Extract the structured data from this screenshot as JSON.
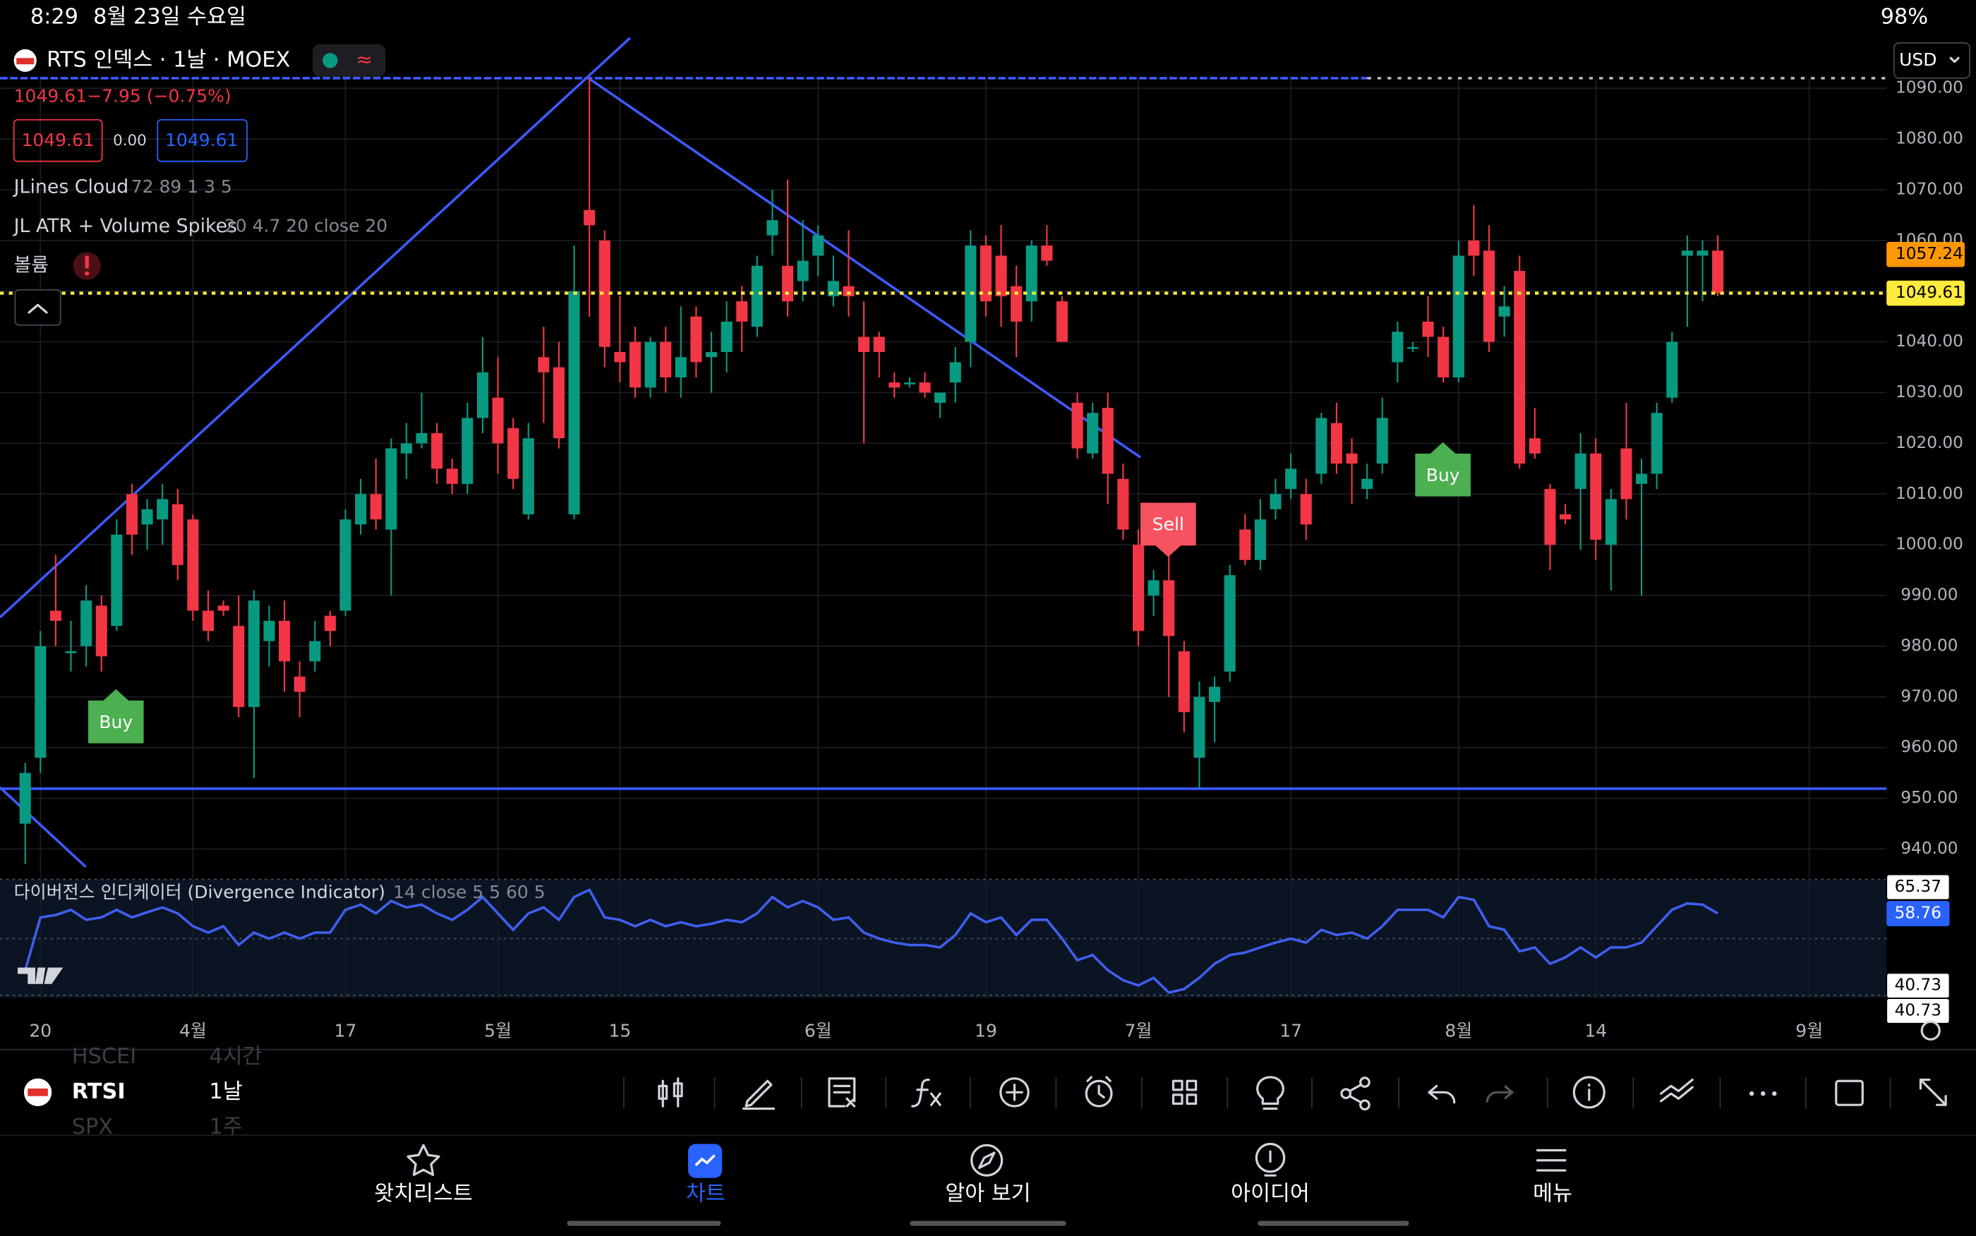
{
  "status_bar": {
    "time": "8:29",
    "date": "8월 23일 수요일",
    "battery": "98%"
  },
  "header": {
    "symbol": "RTS 인덱스 · 1날 · MOEX",
    "currency": "USD"
  },
  "quote": {
    "price": "1049.61",
    "change": "−7.95 (−0.75%)",
    "bid": "1049.61",
    "spread": "0.00",
    "ask": "1049.61"
  },
  "indicators": [
    {
      "name": "JLines Cloud",
      "params": "72 89 1 3 5"
    },
    {
      "name": "JL ATR + Volume Spikes",
      "params": "20 4.7 20 close 20"
    },
    {
      "name": "볼륨"
    }
  ],
  "signals": [
    "Buy",
    "Sell",
    "Buy"
  ],
  "chart_data": {
    "type": "candlestick",
    "up_color": "#089981",
    "down_color": "#f23645",
    "grid": true,
    "open": [
      945,
      958,
      987,
      979,
      980,
      988,
      984,
      1010,
      1004,
      1005,
      1008,
      1005,
      987,
      988,
      984,
      968,
      981,
      985,
      974,
      977,
      986,
      987,
      1004,
      1010,
      1003,
      1018,
      1020,
      1022,
      1015,
      1012,
      1025,
      1029,
      1023,
      1006,
      1037,
      1035,
      1006,
      1066,
      1060,
      1038,
      1040,
      1031,
      1040,
      1033,
      1045,
      1037,
      1038,
      1048,
      1043,
      1061,
      1055,
      1052,
      1057,
      1049,
      1051,
      1041,
      1041,
      1032,
      1032,
      1032,
      1028,
      1032,
      1040,
      1059,
      1057,
      1051,
      1048,
      1059,
      1048,
      1028,
      1018,
      1027,
      1013,
      1000,
      990,
      993,
      979,
      958,
      969,
      975,
      1003,
      997,
      1007,
      1011,
      1010,
      1014,
      1024,
      1018,
      1011,
      1016,
      1036,
      1039,
      1044,
      1041,
      1033,
      1060,
      1058,
      1045,
      1054,
      1021,
      1011,
      1006,
      1011,
      1018,
      1000,
      1019,
      1012,
      1014,
      1029,
      1057,
      1057,
      1058
    ],
    "high": [
      957,
      983,
      998,
      985,
      992,
      990,
      1005,
      1012,
      1009,
      1012,
      1011,
      1006,
      991,
      989,
      990,
      991,
      988,
      989,
      977,
      985,
      987,
      1007,
      1013,
      1017,
      1021,
      1024,
      1030,
      1024,
      1017,
      1028,
      1041,
      1037,
      1025,
      1024,
      1043,
      1040,
      1059,
      1092,
      1062,
      1049,
      1043,
      1041,
      1043,
      1047,
      1047,
      1042,
      1048,
      1051,
      1057,
      1070,
      1072,
      1064,
      1063,
      1057,
      1062,
      1048,
      1042,
      1034,
      1033,
      1034,
      1030,
      1039,
      1062,
      1061,
      1063,
      1055,
      1060,
      1063,
      1049,
      1030,
      1028,
      1030,
      1016,
      1003,
      995,
      998,
      981,
      973,
      974,
      996,
      1006,
      1009,
      1013,
      1018,
      1013,
      1026,
      1028,
      1021,
      1016,
      1029,
      1044,
      1040,
      1049,
      1043,
      1060,
      1067,
      1063,
      1051,
      1057,
      1027,
      1012,
      1008,
      1022,
      1021,
      1011,
      1028,
      1017,
      1028,
      1042,
      1061,
      1060,
      1061
    ],
    "low": [
      937,
      955,
      980,
      975,
      976,
      975,
      983,
      998,
      999,
      1000,
      993,
      985,
      981,
      986,
      966,
      954,
      976,
      971,
      966,
      975,
      980,
      986,
      1002,
      1003,
      990,
      1013,
      1019,
      1012,
      1010,
      1010,
      1022,
      1014,
      1011,
      1005,
      1024,
      1019,
      1005,
      1045,
      1035,
      1032,
      1029,
      1029,
      1030,
      1029,
      1033,
      1030,
      1034,
      1038,
      1041,
      1057,
      1045,
      1048,
      1053,
      1047,
      1045,
      1020,
      1033,
      1029,
      1031,
      1029,
      1025,
      1028,
      1035,
      1045,
      1043,
      1037,
      1044,
      1055,
      1040,
      1017,
      1017,
      1008,
      1001,
      980,
      986,
      970,
      963,
      952,
      961,
      973,
      996,
      995,
      1005,
      1009,
      1001,
      1012,
      1014,
      1008,
      1009,
      1014,
      1032,
      1038,
      1037,
      1032,
      1032,
      1053,
      1038,
      1041,
      1015,
      1017,
      995,
      1004,
      999,
      997,
      991,
      1005,
      990,
      1011,
      1028,
      1043,
      1048,
      1049
    ],
    "close": [
      955,
      980,
      985,
      979,
      989,
      978,
      1002,
      1002,
      1007,
      1009,
      996,
      987,
      983,
      987,
      968,
      989,
      985,
      977,
      971,
      981,
      983,
      1005,
      1010,
      1005,
      1019,
      1020,
      1022,
      1015,
      1012,
      1025,
      1034,
      1020,
      1013,
      1021,
      1034,
      1021,
      1050,
      1063,
      1039,
      1036,
      1031,
      1040,
      1033,
      1037,
      1036,
      1038,
      1044,
      1044,
      1055,
      1064,
      1048,
      1056,
      1061,
      1052,
      1049,
      1038,
      1038,
      1031,
      1032,
      1030,
      1030,
      1036,
      1059,
      1048,
      1049,
      1044,
      1059,
      1056,
      1040,
      1019,
      1026,
      1014,
      1003,
      983,
      993,
      982,
      967,
      970,
      972,
      994,
      997,
      1005,
      1010,
      1015,
      1004,
      1025,
      1016,
      1016,
      1013,
      1025,
      1042,
      1039,
      1041,
      1033,
      1057,
      1057,
      1040,
      1047,
      1016,
      1018,
      1000,
      1005,
      1018,
      1001,
      1009,
      1009,
      1014,
      1026,
      1040,
      1058,
      1058,
      1049.61
    ],
    "xlim": [
      -1.65,
      122
    ],
    "xticks": [
      {
        "value": 1,
        "label": "20"
      },
      {
        "value": 11,
        "label": "4월"
      },
      {
        "value": 21,
        "label": "17"
      },
      {
        "value": 31,
        "label": "5월"
      },
      {
        "value": 39,
        "label": "15"
      },
      {
        "value": 52,
        "label": "6월"
      },
      {
        "value": 63,
        "label": "19"
      },
      {
        "value": 73,
        "label": "7월"
      },
      {
        "value": 83,
        "label": "17"
      },
      {
        "value": 94,
        "label": "8월"
      },
      {
        "value": 103,
        "label": "14"
      },
      {
        "value": 117,
        "label": "9월"
      }
    ],
    "ylim": [
      936,
      1092
    ],
    "yticks": [
      {
        "value": 940,
        "label": "940.00"
      },
      {
        "value": 950,
        "label": "950.00"
      },
      {
        "value": 960,
        "label": "960.00"
      },
      {
        "value": 970,
        "label": "970.00"
      },
      {
        "value": 980,
        "label": "980.00"
      },
      {
        "value": 990,
        "label": "990.00"
      },
      {
        "value": 1000,
        "label": "1000.00"
      },
      {
        "value": 1010,
        "label": "1010.00"
      },
      {
        "value": 1020,
        "label": "1020.00"
      },
      {
        "value": 1030,
        "label": "1030.00"
      },
      {
        "value": 1040,
        "label": "1040.00"
      },
      {
        "value": 1050,
        "label": "1050.00"
      },
      {
        "value": 1060,
        "label": "1060.00"
      },
      {
        "value": 1070,
        "label": "1070.00"
      },
      {
        "value": 1080,
        "label": "1080.00"
      },
      {
        "value": 1090,
        "label": "1090.00"
      }
    ],
    "price_labels": [
      {
        "value": 1057.24,
        "color": "#ff9800"
      },
      {
        "value": 1049.61,
        "color": "#ffeb3b"
      }
    ]
  },
  "oscillator": {
    "title": "다이버전스 인디케이터 (Divergence Indicator)",
    "params": "14 close 5 5 60 5",
    "color": "#3f5ff0",
    "ylim": [
      37.7,
      67.3
    ],
    "values": [
      44.6,
      57.8,
      58.4,
      59.7,
      57.2,
      57.8,
      59.7,
      57.8,
      59.1,
      60.3,
      58.8,
      55.6,
      54.0,
      55.6,
      50.9,
      54.0,
      52.5,
      54.0,
      52.5,
      54.0,
      54.0,
      59.7,
      61.0,
      58.8,
      61.9,
      60.3,
      61.0,
      58.8,
      57.2,
      59.7,
      62.9,
      58.8,
      54.7,
      58.8,
      60.3,
      57.2,
      62.9,
      64.7,
      57.8,
      57.2,
      55.6,
      57.2,
      55.6,
      56.6,
      55.6,
      56.2,
      57.2,
      56.6,
      58.8,
      62.9,
      60.3,
      61.9,
      60.3,
      57.2,
      57.8,
      54.0,
      52.5,
      51.5,
      50.9,
      50.9,
      50.3,
      53.4,
      58.8,
      56.6,
      57.8,
      53.4,
      57.2,
      57.2,
      52.5,
      47.1,
      48.4,
      44.6,
      42.1,
      40.8,
      42.7,
      39.0,
      39.9,
      42.7,
      46.2,
      48.4,
      49.0,
      50.3,
      51.5,
      52.5,
      51.5,
      54.7,
      53.4,
      54.0,
      52.5,
      55.6,
      59.7,
      59.7,
      59.7,
      57.8,
      62.9,
      62.2,
      55.6,
      54.7,
      49.3,
      50.3,
      46.2,
      47.8,
      50.3,
      47.8,
      50.3,
      50.3,
      51.5,
      55.6,
      59.7,
      61.3,
      61.0,
      58.76
    ],
    "labels": [
      {
        "value": 65.37,
        "color": "#ffffff"
      },
      {
        "value": 58.76,
        "color": "#2962ff"
      },
      {
        "value": 40.73,
        "color": "#ffffff"
      },
      {
        "value": 40.73,
        "color": "#ffffff"
      }
    ]
  },
  "symbols": [
    "HSCEI",
    "RTSI",
    "SPX"
  ],
  "timeframes": [
    "4시간",
    "1날",
    "1주"
  ],
  "nav": [
    "왓치리스트",
    "차트",
    "알아 보기",
    "아이디어",
    "메뉴"
  ]
}
